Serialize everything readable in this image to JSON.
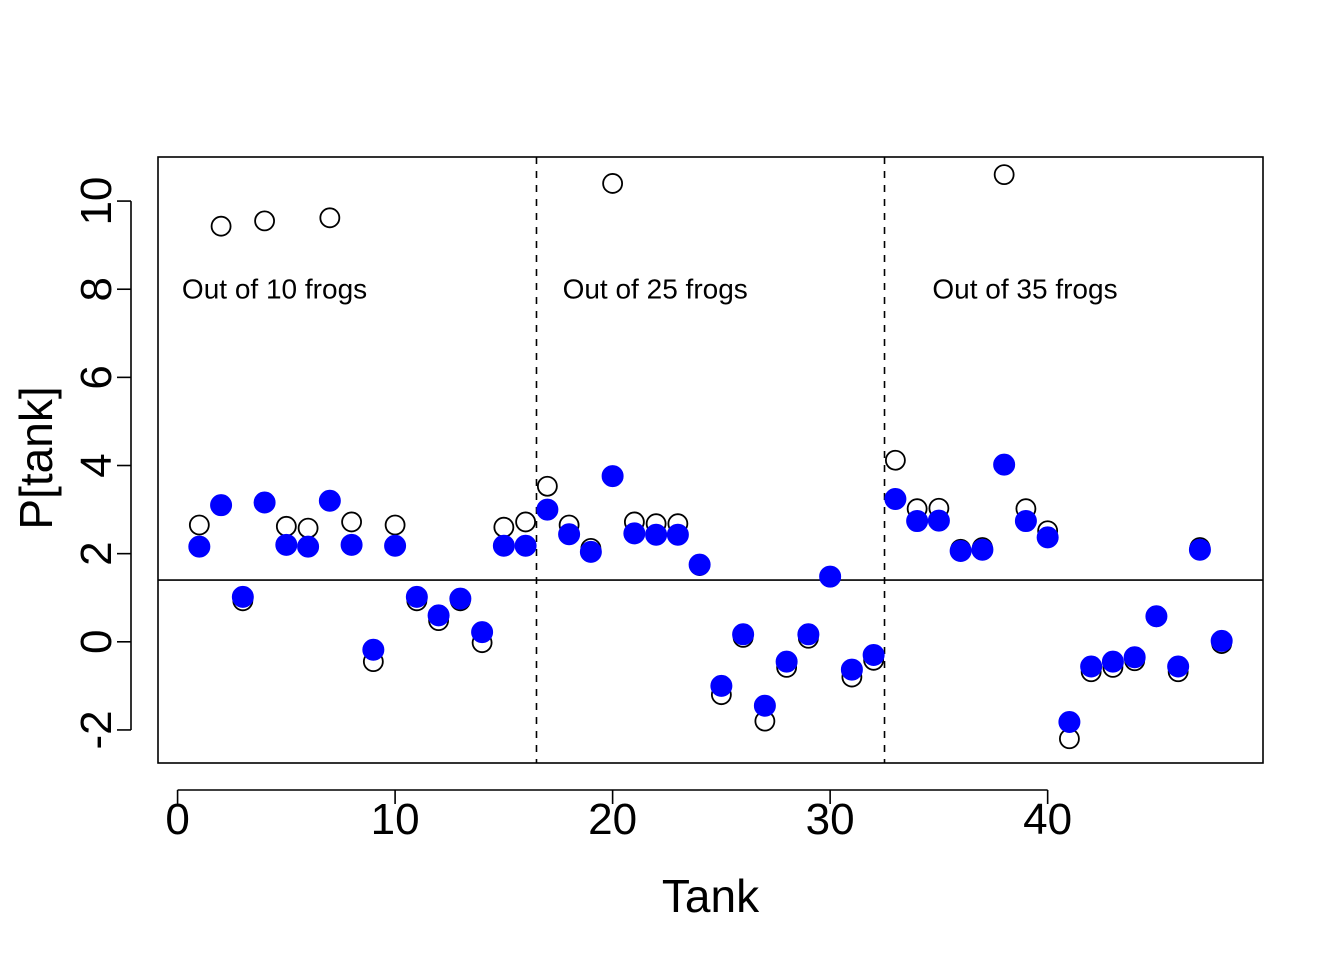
{
  "chart_data": {
    "type": "scatter",
    "title": "",
    "xlabel": "Tank",
    "ylabel": "P[tank]",
    "xlim": [
      -0.9,
      49.9
    ],
    "ylim": [
      -2.75,
      11.0
    ],
    "xticks": [
      0,
      10,
      20,
      30,
      40
    ],
    "yticks": [
      -2,
      0,
      2,
      4,
      6,
      8,
      10
    ],
    "grid": false,
    "legend": "none",
    "hline": 1.4,
    "vlines": [
      16.5,
      32.5
    ],
    "annotations": [
      {
        "text": "Out of 10 frogs",
        "x": 0.2,
        "y": 8
      },
      {
        "text": "Out of 25 frogs",
        "x": 17.7,
        "y": 8
      },
      {
        "text": "Out of 35 frogs",
        "x": 34.7,
        "y": 8
      }
    ],
    "series": [
      {
        "style": "open-circle",
        "color": "#000000",
        "x": [
          1,
          2,
          3,
          4,
          5,
          6,
          7,
          8,
          9,
          10,
          11,
          12,
          13,
          14,
          15,
          16,
          17,
          18,
          19,
          20,
          21,
          22,
          23,
          24,
          25,
          26,
          27,
          28,
          29,
          30,
          31,
          32,
          33,
          34,
          35,
          36,
          37,
          38,
          39,
          40,
          41,
          42,
          43,
          44,
          45,
          46,
          47,
          48
        ],
        "y": [
          2.65,
          9.43,
          0.93,
          9.55,
          2.62,
          2.58,
          9.62,
          2.72,
          -0.45,
          2.65,
          0.93,
          0.48,
          0.93,
          -0.02,
          2.6,
          2.72,
          3.53,
          2.65,
          2.12,
          10.4,
          2.72,
          2.68,
          2.68,
          1.73,
          -1.2,
          0.1,
          -1.8,
          -0.58,
          0.08,
          1.47,
          -0.8,
          -0.42,
          4.12,
          3.02,
          3.03,
          2.1,
          2.14,
          10.6,
          3.02,
          2.52,
          -2.2,
          -0.68,
          -0.58,
          -0.43,
          0.57,
          -0.68,
          2.14,
          -0.04
        ]
      },
      {
        "style": "filled-circle",
        "color": "#0000ff",
        "x": [
          1,
          2,
          3,
          4,
          5,
          6,
          7,
          8,
          9,
          10,
          11,
          12,
          13,
          14,
          15,
          16,
          17,
          18,
          19,
          20,
          21,
          22,
          23,
          24,
          25,
          26,
          27,
          28,
          29,
          30,
          31,
          32,
          33,
          34,
          35,
          36,
          37,
          38,
          39,
          40,
          41,
          42,
          43,
          44,
          45,
          46,
          47,
          48
        ],
        "y": [
          2.16,
          3.1,
          1.02,
          3.16,
          2.2,
          2.16,
          3.2,
          2.2,
          -0.18,
          2.18,
          1.02,
          0.6,
          0.98,
          0.22,
          2.18,
          2.18,
          3.0,
          2.44,
          2.04,
          3.76,
          2.46,
          2.43,
          2.43,
          1.75,
          -1.0,
          0.17,
          -1.45,
          -0.45,
          0.17,
          1.48,
          -0.63,
          -0.3,
          3.24,
          2.74,
          2.75,
          2.06,
          2.09,
          4.02,
          2.74,
          2.37,
          -1.82,
          -0.56,
          -0.45,
          -0.35,
          0.58,
          -0.56,
          2.09,
          0.02
        ]
      }
    ]
  }
}
